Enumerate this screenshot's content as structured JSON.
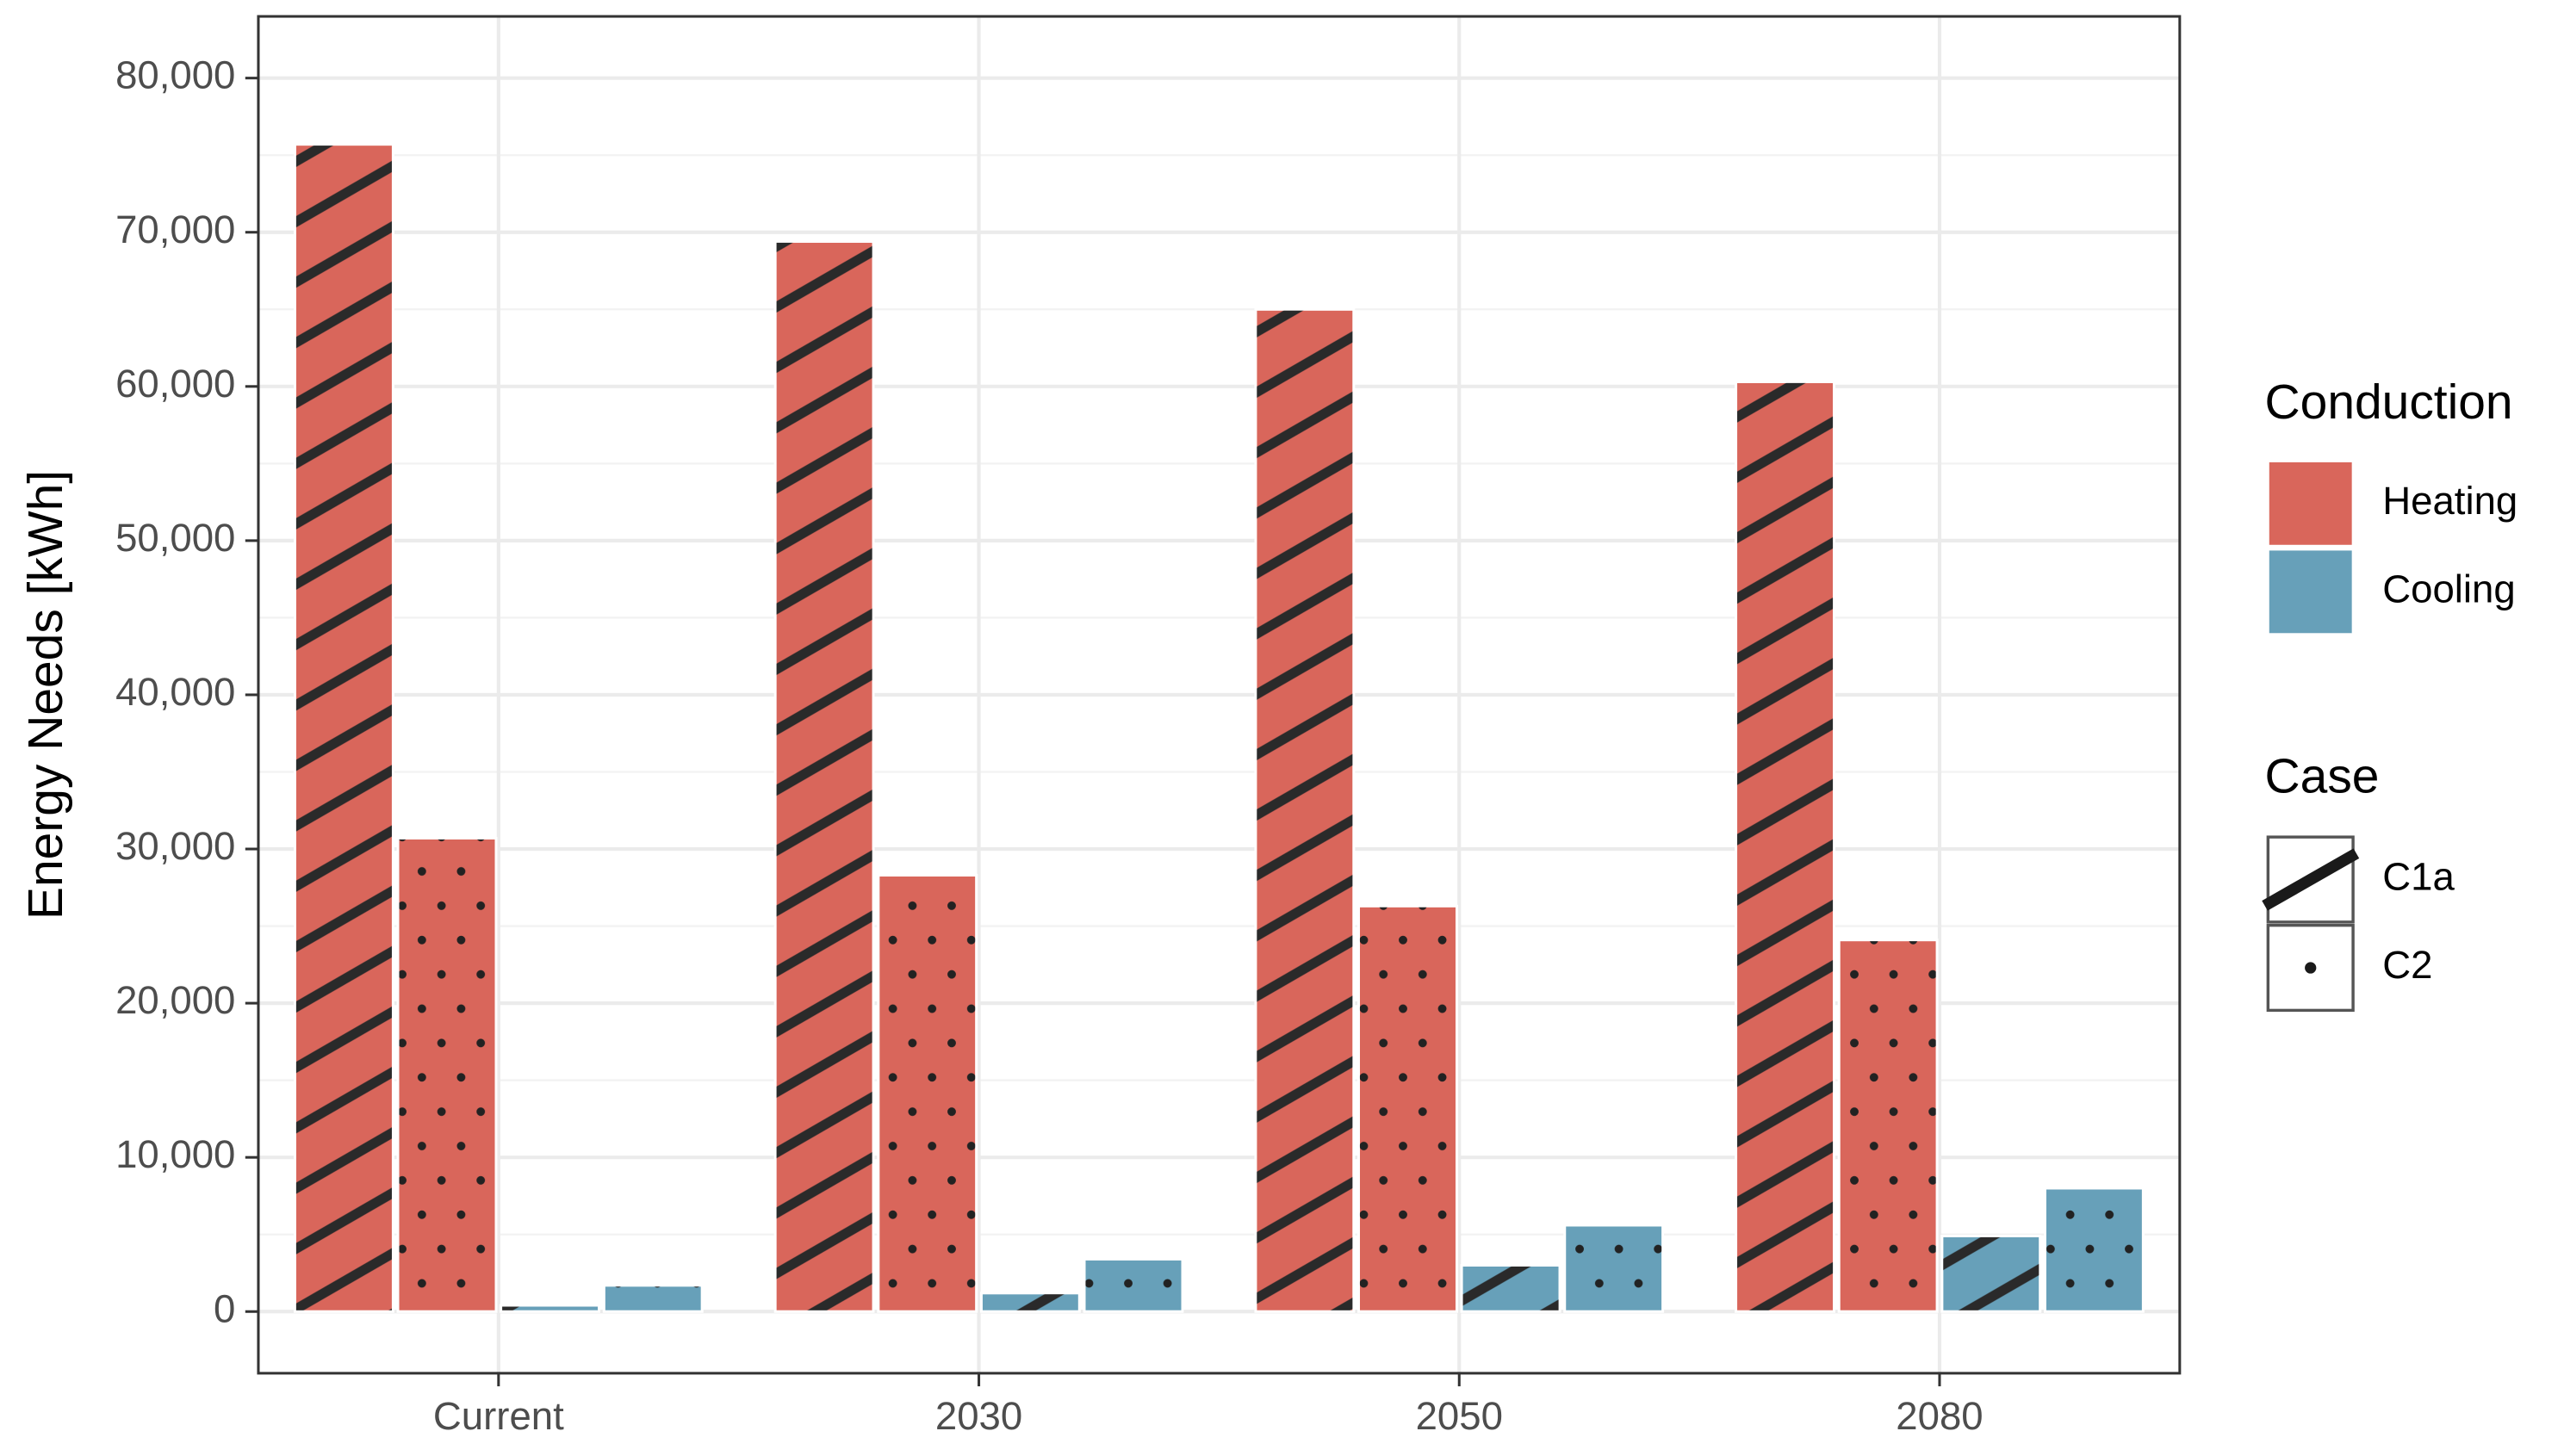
{
  "chart_data": {
    "type": "bar",
    "y_label": "Energy Needs [kWh]",
    "categories": [
      "Current",
      "2030",
      "2050",
      "2080"
    ],
    "ylim": [
      -4000,
      84000
    ],
    "yticks": [
      {
        "value": 0,
        "label": "0"
      },
      {
        "value": 10000,
        "label": "10,000"
      },
      {
        "value": 20000,
        "label": "20,000"
      },
      {
        "value": 30000,
        "label": "30,000"
      },
      {
        "value": 40000,
        "label": "40,000"
      },
      {
        "value": 50000,
        "label": "50,000"
      },
      {
        "value": 60000,
        "label": "60,000"
      },
      {
        "value": 70000,
        "label": "70,000"
      },
      {
        "value": 80000,
        "label": "80,000"
      }
    ],
    "grid": true,
    "legend_position": "right",
    "conduction": {
      "title": "Conduction",
      "items": [
        {
          "name": "Heating",
          "color": "#d9665b"
        },
        {
          "name": "Cooling",
          "color": "#67a0b9"
        }
      ]
    },
    "case": {
      "title": "Case",
      "items": [
        {
          "name": "C1a",
          "pattern": "hatch"
        },
        {
          "name": "C2",
          "pattern": "dots"
        }
      ]
    },
    "series": [
      {
        "conduction": 0,
        "case": 0,
        "values": [
          75700,
          69400,
          65000,
          60300
        ]
      },
      {
        "conduction": 0,
        "case": 1,
        "values": [
          30700,
          28300,
          26300,
          24100
        ]
      },
      {
        "conduction": 1,
        "case": 0,
        "values": [
          400,
          1200,
          3000,
          4900
        ]
      },
      {
        "conduction": 1,
        "case": 1,
        "values": [
          1700,
          3400,
          5600,
          8000
        ]
      }
    ]
  }
}
